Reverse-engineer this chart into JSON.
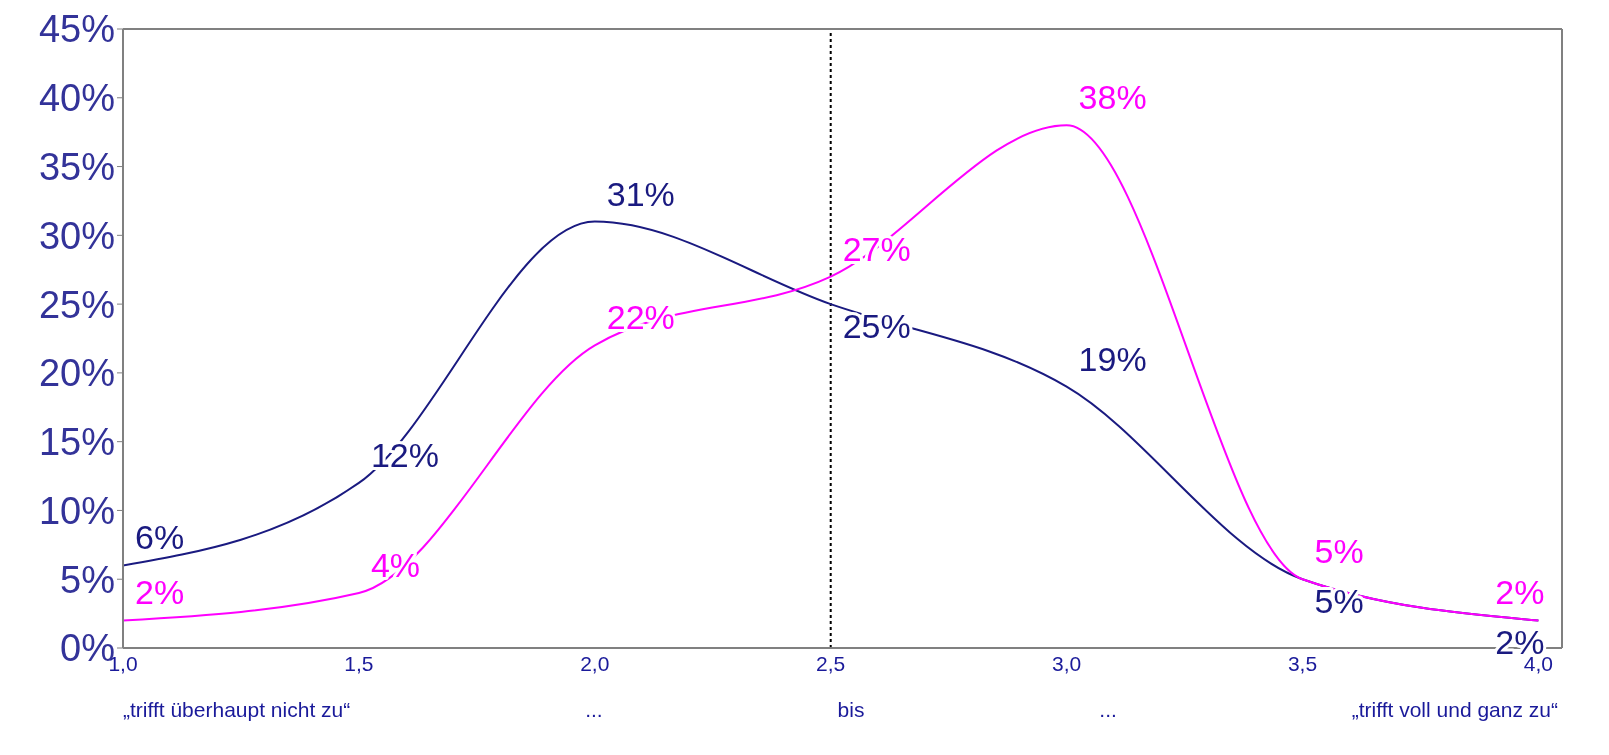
{
  "chart_data": {
    "type": "line",
    "x": [
      1.0,
      1.5,
      2.0,
      2.5,
      3.0,
      3.5,
      4.0
    ],
    "series": [
      {
        "color": "#1a1a80",
        "values": [
          6,
          12,
          31,
          25,
          19,
          5,
          2
        ],
        "value_labels": [
          "6%",
          "12%",
          "31%",
          "25%",
          "19%",
          "5%",
          "2%"
        ]
      },
      {
        "color": "#ff00ff",
        "values": [
          2,
          4,
          22,
          27,
          38,
          5,
          2
        ],
        "value_labels": [
          "2%",
          "4%",
          "22%",
          "27%",
          "38%",
          "5%",
          "2%"
        ]
      }
    ],
    "xlim": [
      1.0,
      4.05
    ],
    "xticks": [
      {
        "value": 1.0,
        "label": "1,0"
      },
      {
        "value": 1.5,
        "label": "1,5"
      },
      {
        "value": 2.0,
        "label": "2,0"
      },
      {
        "value": 2.5,
        "label": "2,5"
      },
      {
        "value": 3.0,
        "label": "3,0"
      },
      {
        "value": 3.5,
        "label": "3,5"
      },
      {
        "value": 4.0,
        "label": "4,0"
      }
    ],
    "ylim": [
      0,
      45
    ],
    "yticks": [
      {
        "value": 0,
        "label": "0%"
      },
      {
        "value": 5,
        "label": "5%"
      },
      {
        "value": 10,
        "label": "10%"
      },
      {
        "value": 15,
        "label": "15%"
      },
      {
        "value": 20,
        "label": "20%"
      },
      {
        "value": 25,
        "label": "25%"
      },
      {
        "value": 30,
        "label": "30%"
      },
      {
        "value": 35,
        "label": "35%"
      },
      {
        "value": 40,
        "label": "40%"
      },
      {
        "value": 45,
        "label": "45%"
      }
    ],
    "ref_lines": [
      {
        "axis": "x",
        "value": 2.5,
        "color": "#000000",
        "line_style": "dotted"
      }
    ],
    "annotations": [
      "„trifft überhaupt nicht zu“",
      "...",
      "bis",
      "...",
      "„trifft voll und ganz zu“"
    ],
    "grid": false,
    "legend": false,
    "marker": "none",
    "line_style": "solid"
  }
}
